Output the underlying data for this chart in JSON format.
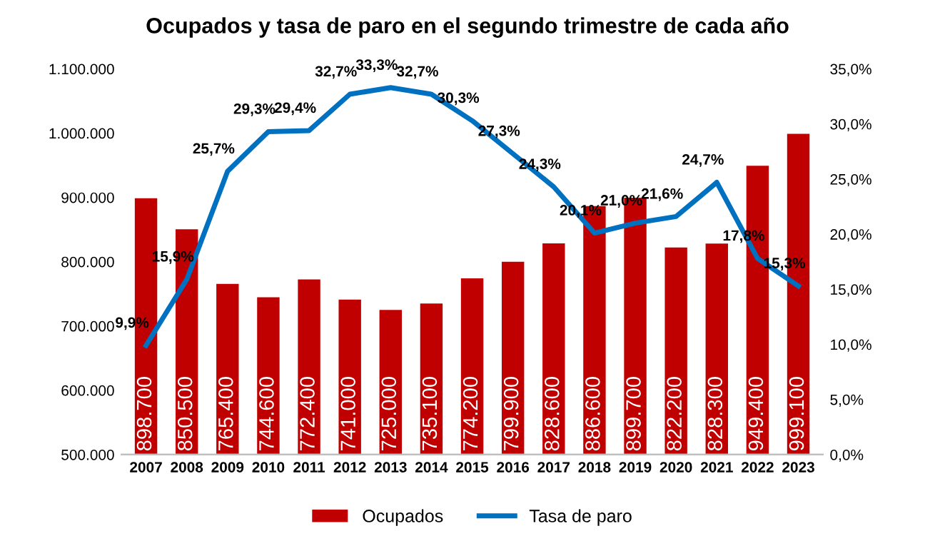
{
  "chart_data": {
    "type": "bar",
    "title": "Ocupados y tasa de paro en el segundo trimestre de cada año",
    "categories": [
      "2007",
      "2008",
      "2009",
      "2010",
      "2011",
      "2012",
      "2013",
      "2014",
      "2015",
      "2016",
      "2017",
      "2018",
      "2019",
      "2020",
      "2021",
      "2022",
      "2023"
    ],
    "series": [
      {
        "name": "Ocupados",
        "color": "#c00000",
        "values": [
          898700,
          850500,
          765400,
          744600,
          772400,
          741000,
          725000,
          735100,
          774200,
          799900,
          828600,
          886600,
          899700,
          822200,
          828300,
          949400,
          999100
        ],
        "value_labels": [
          "898.700",
          "850.500",
          "765.400",
          "744.600",
          "772.400",
          "741.000",
          "725.000",
          "735.100",
          "774.200",
          "799.900",
          "828.600",
          "886.600",
          "899.700",
          "822.200",
          "828.300",
          "949.400",
          "999.100"
        ]
      },
      {
        "name": "Tasa de paro",
        "type": "line",
        "axis": "y2",
        "color": "#0070c0",
        "values": [
          9.9,
          15.9,
          25.7,
          29.3,
          29.4,
          32.7,
          33.3,
          32.7,
          30.3,
          27.3,
          24.3,
          20.1,
          21.0,
          21.6,
          24.7,
          17.8,
          15.3
        ],
        "value_labels": [
          "9,9%",
          "15,9%",
          "25,7%",
          "29,3%",
          "29,4%",
          "32,7%",
          "33,3%",
          "32,7%",
          "30,3%",
          "27,3%",
          "24,3%",
          "20,1%",
          "21,0%",
          "21,6%",
          "24,7%",
          "17,8%",
          "15,3%"
        ]
      }
    ],
    "ylim": [
      500000,
      1100000
    ],
    "yticks": [
      {
        "value": 500000,
        "label": "500.000"
      },
      {
        "value": 600000,
        "label": "600.000"
      },
      {
        "value": 700000,
        "label": "700.000"
      },
      {
        "value": 800000,
        "label": "800.000"
      },
      {
        "value": 900000,
        "label": "900.000"
      },
      {
        "value": 1000000,
        "label": "1.000.000"
      },
      {
        "value": 1100000,
        "label": "1.100.000"
      }
    ],
    "y2lim": [
      0,
      35
    ],
    "y2ticks": [
      {
        "value": 0,
        "label": "0,0%"
      },
      {
        "value": 5,
        "label": "5,0%"
      },
      {
        "value": 10,
        "label": "10,0%"
      },
      {
        "value": 15,
        "label": "15,0%"
      },
      {
        "value": 20,
        "label": "20,0%"
      },
      {
        "value": 25,
        "label": "25,0%"
      },
      {
        "value": 30,
        "label": "30,0%"
      },
      {
        "value": 35,
        "label": "35,0%"
      }
    ],
    "legend": "bottom",
    "grid": false,
    "marker": "none",
    "line_style": "solid"
  }
}
